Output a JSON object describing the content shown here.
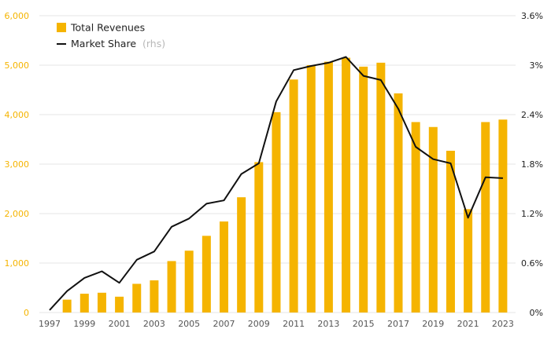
{
  "chart_data": {
    "type": "bar+line",
    "title": "",
    "colors": {
      "bar": "#f5b400",
      "line": "#111111",
      "left_axis_text": "#f5b400",
      "right_axis_text": "#222222",
      "grid": "#e6e6e6"
    },
    "legend": {
      "position": "top-left",
      "items": [
        {
          "label": "Total Revenues",
          "note": ""
        },
        {
          "label": "Market Share",
          "note": "(rhs)"
        }
      ]
    },
    "x_labels": [
      "1997",
      "1999",
      "2001",
      "2003",
      "2005",
      "2007",
      "2009",
      "2011",
      "2013",
      "2015",
      "2017",
      "2019",
      "2021",
      "2023"
    ],
    "y_left": {
      "ticks": [
        0,
        1000,
        2000,
        3000,
        4000,
        5000,
        6000
      ],
      "tick_labels": [
        "0",
        "1,000",
        "2,000",
        "3,000",
        "4,000",
        "5,000",
        "6,000"
      ],
      "range": [
        0,
        6000
      ]
    },
    "y_right": {
      "ticks": [
        0,
        0.6,
        1.2,
        1.8,
        2.4,
        3.0,
        3.6
      ],
      "tick_labels": [
        "0%",
        "0.6%",
        "1.2%",
        "1.8%",
        "2.4%",
        "3%",
        "3.6%"
      ],
      "range": [
        0,
        3.6
      ]
    },
    "years": [
      1997,
      1998,
      1999,
      2000,
      2001,
      2002,
      2003,
      2004,
      2005,
      2006,
      2007,
      2008,
      2009,
      2010,
      2011,
      2012,
      2013,
      2014,
      2015,
      2016,
      2017,
      2018,
      2019,
      2020,
      2021,
      2022,
      2023
    ],
    "series": [
      {
        "name": "Total Revenues",
        "type": "bar",
        "axis": "left",
        "values": [
          null,
          260,
          380,
          400,
          320,
          580,
          650,
          1040,
          1250,
          1550,
          1840,
          2330,
          3040,
          4050,
          4710,
          5000,
          5070,
          5150,
          4970,
          5050,
          4430,
          3850,
          3750,
          3270,
          2090,
          3850,
          3900
        ]
      },
      {
        "name": "Market Share",
        "type": "line",
        "axis": "right",
        "values": [
          0.03,
          0.26,
          0.42,
          0.5,
          0.36,
          0.64,
          0.74,
          1.04,
          1.14,
          1.32,
          1.36,
          1.68,
          1.81,
          2.56,
          2.94,
          2.99,
          3.03,
          3.1,
          2.87,
          2.82,
          2.47,
          2.01,
          1.86,
          1.81,
          1.15,
          1.64,
          1.63
        ]
      }
    ]
  }
}
